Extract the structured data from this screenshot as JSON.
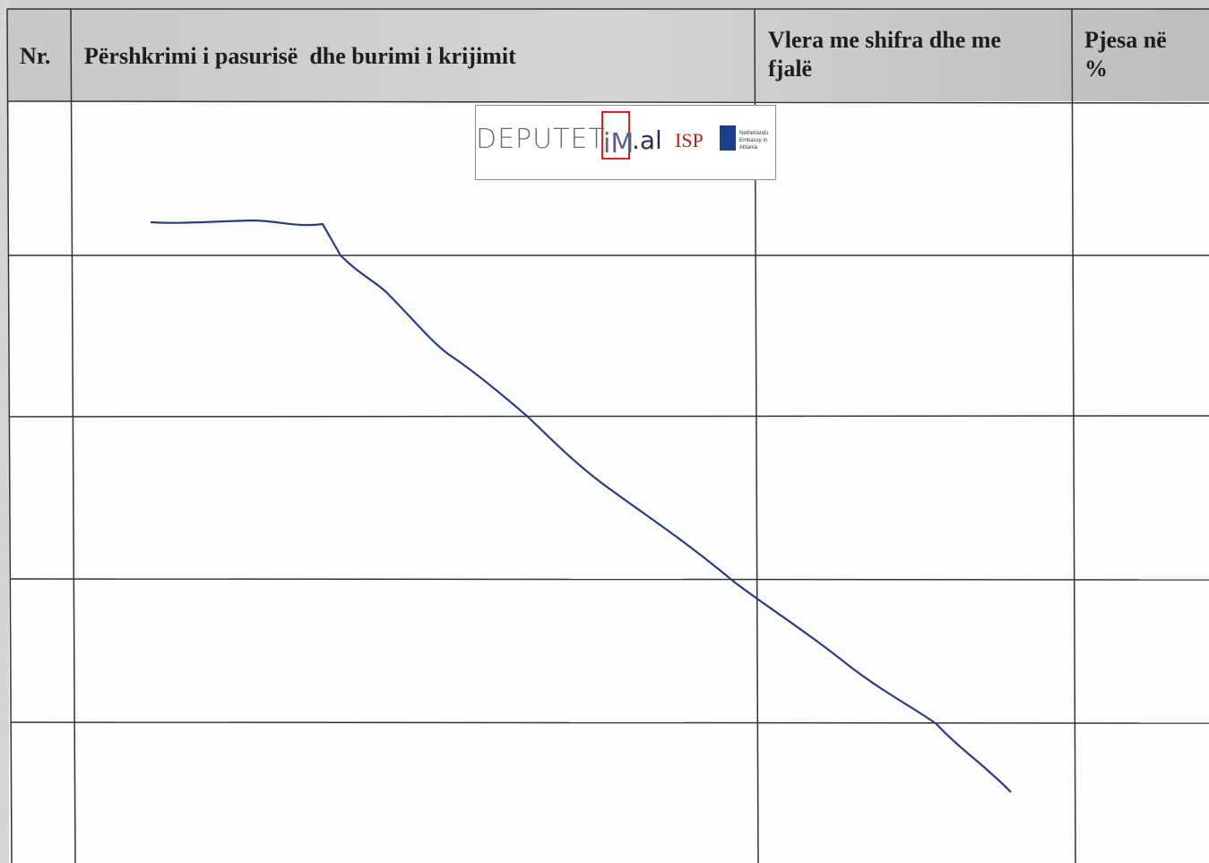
{
  "table": {
    "headers": [
      "Nr.",
      "Përshkrimi i pasurisë  dhe burimi i krijimit",
      "Vlera me shifra dhe me fjalë",
      "Pjesa në %"
    ]
  },
  "watermark": {
    "site": "DEPUTET",
    "site_mark": "iM",
    "site_domain": ".al",
    "partner": "ISP",
    "embassy": "Netherlands Embassy in Albania"
  }
}
